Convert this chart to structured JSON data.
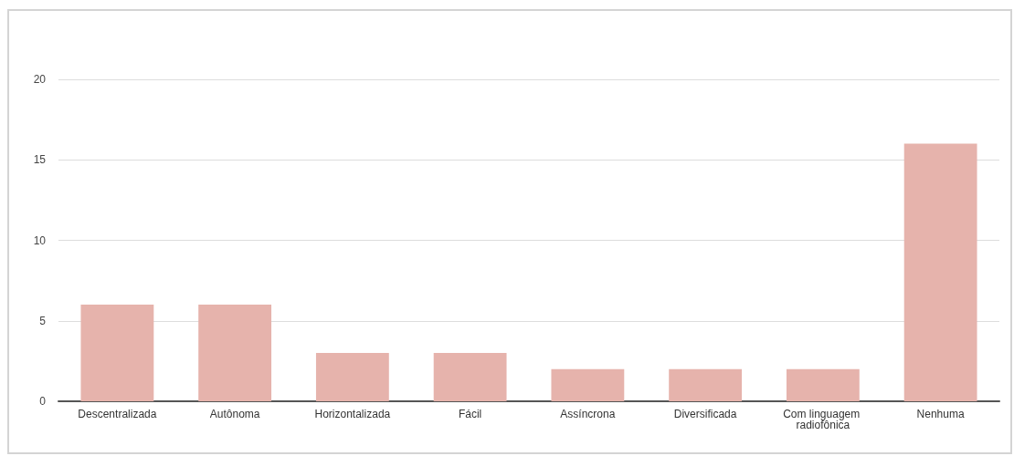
{
  "chart_data": {
    "type": "bar",
    "categories": [
      "Descentralizada",
      "Autônoma",
      "Horizontalizada",
      "Fácil",
      "Assíncrona",
      "Diversificada",
      "Com linguagem radiofônica",
      "Nenhuma"
    ],
    "values": [
      6,
      6,
      3,
      3,
      2,
      2,
      2,
      16
    ],
    "color": "#e6b3ac",
    "ylim": [
      0,
      20
    ],
    "yticks": [
      0,
      5,
      10,
      15,
      20
    ],
    "grid": "y"
  }
}
